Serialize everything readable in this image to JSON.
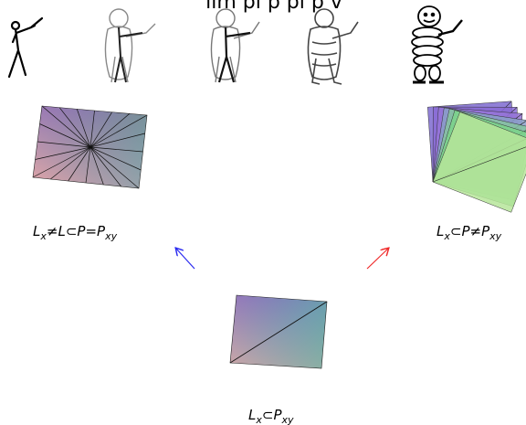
{
  "title_partial": "lim pl p pl p v",
  "labels": {
    "left": {
      "a": "L",
      "a_sub": "x",
      "op1": "≠",
      "b": "L",
      "op2": "⊂",
      "c": "P",
      "op3": "=",
      "d": "P",
      "d_sub": "xy"
    },
    "right": {
      "a": "L",
      "a_sub": "x",
      "op1": "⊂",
      "b": "P",
      "op2": "≠",
      "c": "P",
      "c_sub": "xy"
    },
    "bottom": {
      "a": "L",
      "a_sub": "x",
      "op1": "⊂",
      "b": "P",
      "b_sub": "xy"
    }
  },
  "arrow_colors": {
    "left": "#2a2af0",
    "right": "#f02a2a"
  },
  "figure_icons": [
    "stick-figure-icon",
    "sketch-figure-icon",
    "partial-figure-icon",
    "shaded-figure-icon",
    "mascot-figure-icon"
  ]
}
